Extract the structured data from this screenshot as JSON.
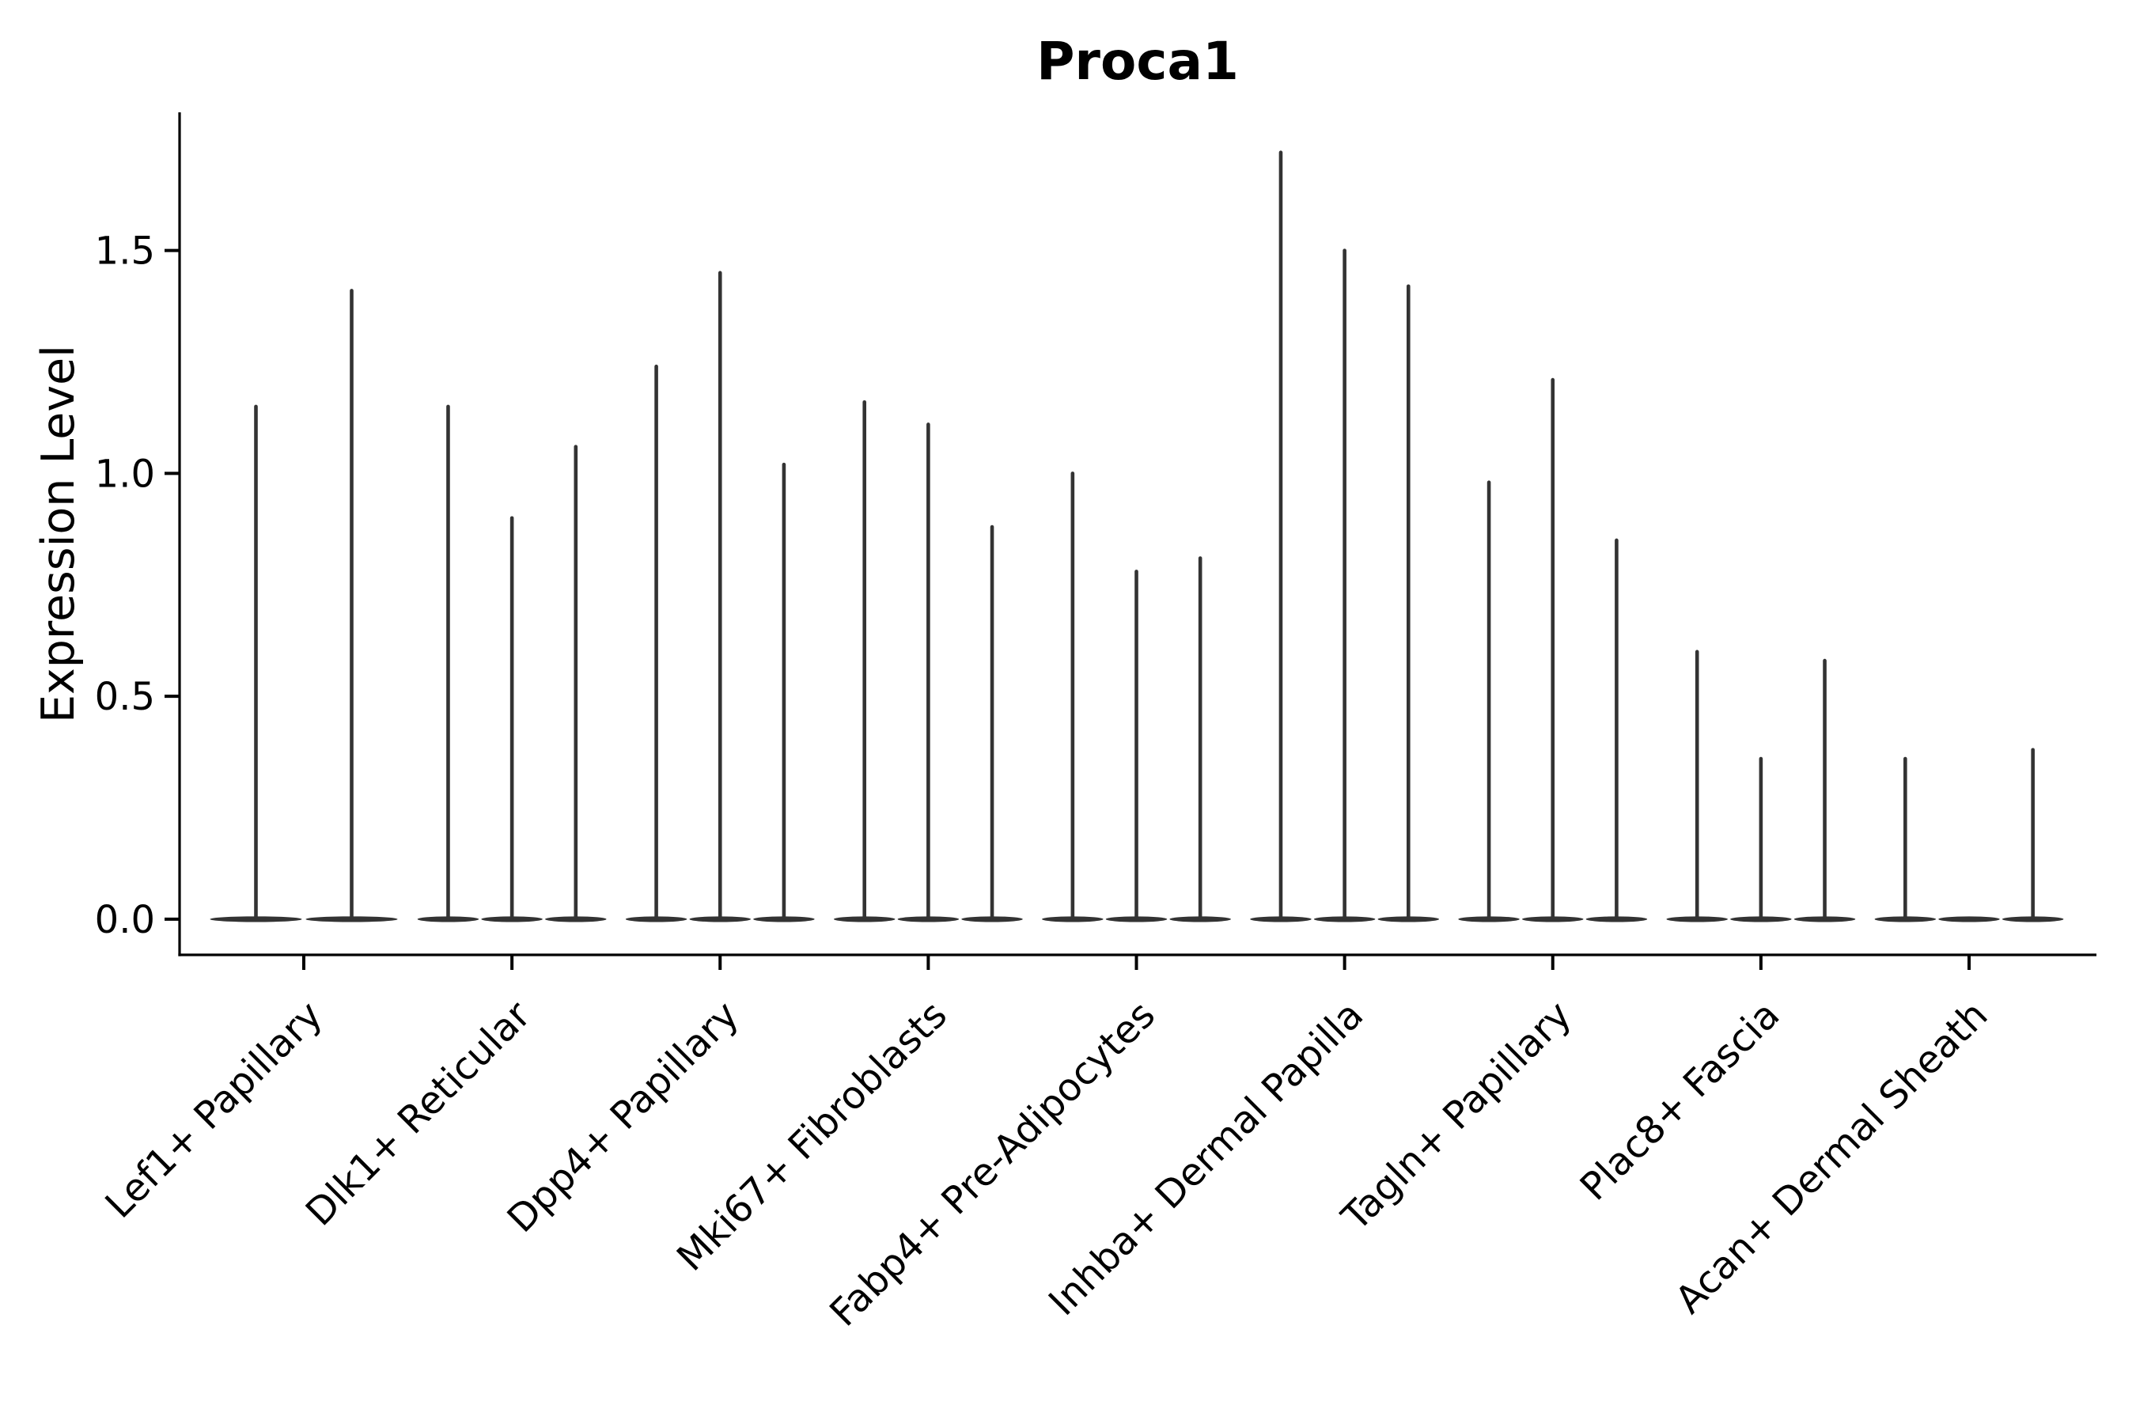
{
  "figure": {
    "background": "#ffffff"
  },
  "chart_data": {
    "type": "violin",
    "title": "Proca1",
    "ylabel": "Expression Level",
    "xlabel": "",
    "categories": [
      "Lef1+ Papillary",
      "Dlk1+ Reticular",
      "Dpp4+ Papillary",
      "Mki67+ Fibroblasts",
      "Fabp4+ Pre-Adipocytes",
      "Inhba+ Dermal Papilla",
      "Tagln+ Papillary",
      "Plac8+ Fascia",
      "Acan+ Dermal Sheath"
    ],
    "series_note": "Each category shows thin collapsed violins (most cells at 0) with a narrow spike up to the max expression value per violin; a value of 0 means the violin is flat on the baseline.",
    "violin_spike_maxima": [
      [
        1.15,
        1.41
      ],
      [
        1.15,
        0.9,
        1.06
      ],
      [
        1.24,
        1.45,
        1.02
      ],
      [
        1.16,
        1.11,
        0.88
      ],
      [
        1.0,
        0.78,
        0.81
      ],
      [
        1.72,
        1.5,
        1.42
      ],
      [
        0.98,
        1.21,
        0.85
      ],
      [
        0.6,
        0.36,
        0.58
      ],
      [
        0.36,
        0.0,
        0.38
      ]
    ],
    "ytick_values": [
      0.0,
      0.5,
      1.0,
      1.5
    ],
    "ytick_labels": [
      "0.0",
      "0.5",
      "1.0",
      "1.5"
    ],
    "ylim": [
      -0.08,
      1.81
    ],
    "baseline_value": 0.0,
    "grid": "off",
    "legend": "none",
    "x_label_rotation_deg": 45,
    "violin_color": "#333333",
    "axis_color": "#000000",
    "text_color": "#000000"
  }
}
